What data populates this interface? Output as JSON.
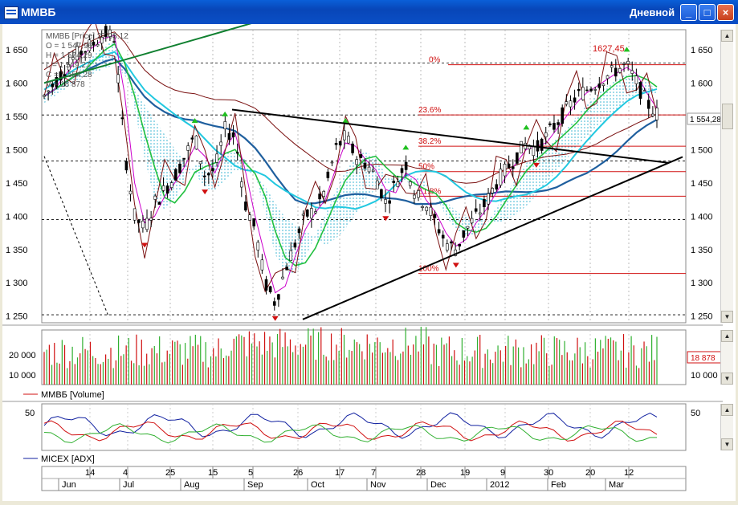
{
  "window": {
    "title": "ММВБ",
    "period": "Дневной",
    "buttons": {
      "minimize": "_",
      "maximize": "□",
      "close": "×"
    }
  },
  "colors": {
    "price_ma_long": "#1f5f9e",
    "ma_cyan": "#22c8e0",
    "ma_green": "#22c040",
    "ma_magenta": "#cc00cc",
    "ma_darkred": "#7a1010",
    "level_red": "#d01010",
    "up_arrow": "#20c020",
    "down_arrow": "#d01010",
    "vol_red": "#d01010",
    "vol_green": "#30b030",
    "adx_blue": "#1020a0"
  },
  "legend": {
    "series": "ММВБ [Price] 27.03.12",
    "open": "O = 1 547,96",
    "high": "H = 1 574,29",
    "low": "L = 1 549,27",
    "close": "C = 1 554,28",
    "volume": "V = 18 878"
  },
  "price_panel": {
    "current_price_label": "1 554,28",
    "peak_label": "1627,45",
    "fib_labels": [
      "0%",
      "23.6%",
      "38.2%",
      "50%",
      "61.8%",
      "100%"
    ]
  },
  "volume_panel": {
    "legend": "ММВБ [Volume]",
    "current_label": "18 878"
  },
  "adx_panel": {
    "legend": "MICEX [ADX]"
  },
  "x_axis": {
    "day_labels": [
      "14",
      "4",
      "25",
      "15",
      "5",
      "26",
      "17",
      "7",
      "28",
      "19",
      "9",
      "30",
      "20",
      "12"
    ],
    "month_labels": [
      "Jun",
      "Jul",
      "Aug",
      "Sep",
      "Oct",
      "Nov",
      "Dec",
      "2012",
      "Feb",
      "Mar"
    ]
  },
  "chart_data": [
    {
      "type": "line",
      "title": "ММВБ [Price] 27.03.12",
      "x_axis": "trading days Jun 2011 – Mar 2012",
      "ylim": [
        1240,
        1680
      ],
      "y_ticks": [
        "1 250",
        "1 300",
        "1 350",
        "1 400",
        "1 450",
        "1 500",
        "1 550",
        "1 600",
        "1 650"
      ],
      "close_path": [
        1580,
        1600,
        1620,
        1640,
        1650,
        1660,
        1675,
        1668,
        1500,
        1400,
        1380,
        1420,
        1440,
        1460,
        1490,
        1520,
        1460,
        1470,
        1530,
        1520,
        1420,
        1380,
        1300,
        1270,
        1320,
        1360,
        1400,
        1410,
        1440,
        1500,
        1520,
        1490,
        1480,
        1460,
        1420,
        1450,
        1480,
        1430,
        1420,
        1390,
        1360,
        1350,
        1380,
        1400,
        1420,
        1450,
        1470,
        1490,
        1510,
        1500,
        1520,
        1540,
        1560,
        1580,
        1590,
        1600,
        1610,
        1620,
        1627,
        1600,
        1570,
        1554
      ],
      "fib_levels": [
        {
          "level": "0%",
          "value": 1627.45
        },
        {
          "level": "23.6%",
          "value": 1552
        },
        {
          "level": "38.2%",
          "value": 1505
        },
        {
          "level": "50%",
          "value": 1467
        },
        {
          "level": "61.8%",
          "value": 1430
        },
        {
          "level": "100%",
          "value": 1314
        }
      ],
      "last_close": 1554.28
    },
    {
      "type": "bar",
      "title": "ММВБ [Volume]",
      "y_ticks": [
        "20 000",
        "10 000"
      ],
      "ylim": [
        0,
        30000
      ],
      "last": 18878
    },
    {
      "type": "line",
      "title": "MICEX [ADX]",
      "y_ticks": [
        "50"
      ],
      "ylim": [
        0,
        60
      ]
    }
  ]
}
